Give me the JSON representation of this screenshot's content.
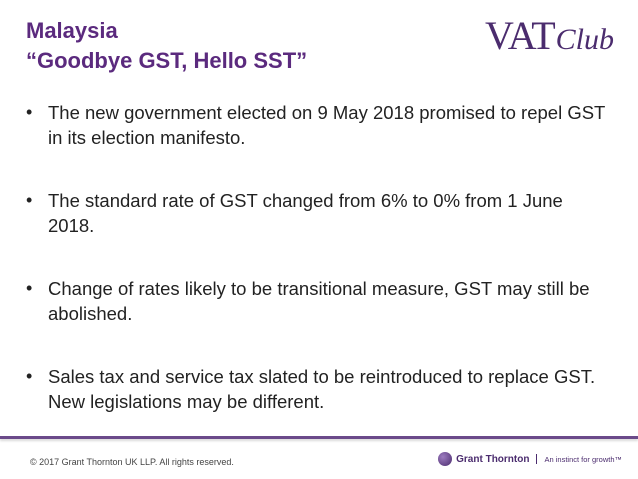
{
  "slide": {
    "title_line1": "Malaysia",
    "title_line2": "“Goodbye GST, Hello SST”",
    "logo": {
      "vat": "VAT",
      "club": "Club"
    },
    "bullets": [
      "The new government elected on 9 May 2018 promised to repel GST in its election manifesto.",
      "The standard rate of GST changed from 6% to 0% from 1 June 2018.",
      "Change of rates likely to be transitional measure, GST may still be abolished.",
      "Sales tax and service tax slated to be reintroduced to replace GST. New legislations may be different."
    ],
    "bullet_symbol": "•"
  },
  "footer": {
    "copyright": "© 2017 Grant Thornton UK LLP. All rights reserved.",
    "brand_name": "Grant Thornton",
    "brand_tagline": "An instinct for growth™"
  },
  "colors": {
    "title": "#5b2a7e",
    "brand": "#4b2c6e",
    "body_text": "#222222"
  }
}
